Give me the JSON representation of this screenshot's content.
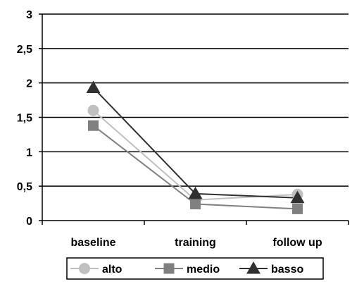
{
  "chart_data": {
    "type": "line",
    "categories": [
      "baseline",
      "training",
      "follow up"
    ],
    "ylim": [
      0,
      3
    ],
    "yticks": [
      0,
      0.5,
      1,
      1.5,
      2,
      2.5,
      3
    ],
    "ytick_labels": [
      "0",
      "0,5",
      "1",
      "1,5",
      "2",
      "2,5",
      "3"
    ],
    "grid": true,
    "legend": "bottom",
    "series": [
      {
        "name": "alto",
        "values": [
          1.6,
          0.3,
          0.38
        ],
        "color": "#c0c0c0",
        "marker": "circle"
      },
      {
        "name": "medio",
        "values": [
          1.38,
          0.24,
          0.17
        ],
        "color": "#808080",
        "marker": "square"
      },
      {
        "name": "basso",
        "values": [
          1.93,
          0.39,
          0.33
        ],
        "color": "#303030",
        "marker": "triangle"
      }
    ]
  }
}
